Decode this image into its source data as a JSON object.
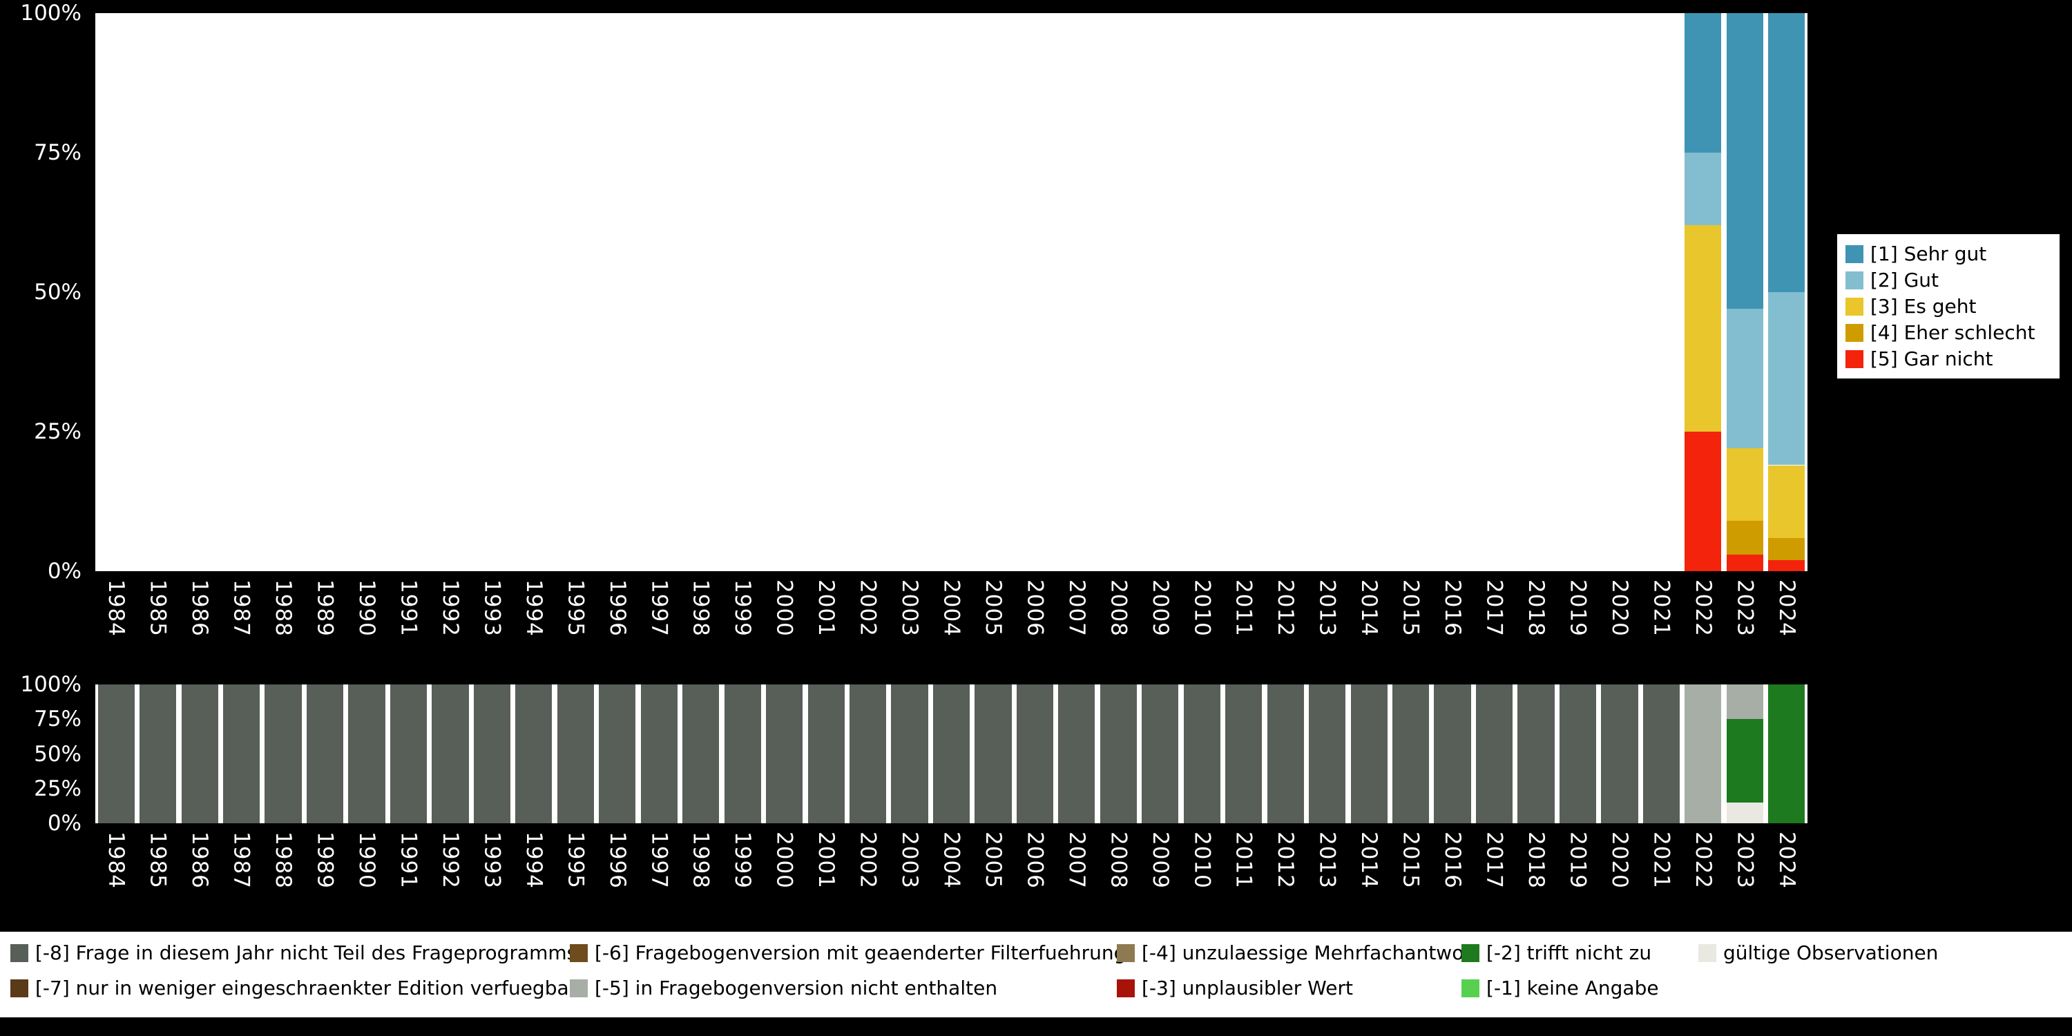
{
  "colors": {
    "page_background": "#000000",
    "plot_background": "#ffffff",
    "axis_text": "#ffffff",
    "legend_background": "#ffffff",
    "legend_text": "#000000"
  },
  "chart_data": [
    {
      "id": "answers",
      "type": "bar",
      "stacked": true,
      "series_order": "bottom-to-top",
      "ylim": [
        0,
        100
      ],
      "yticks_top_to_bottom": [
        "100%",
        "75%",
        "50%",
        "25%",
        "0%"
      ],
      "categories": [
        "1984",
        "1985",
        "1986",
        "1987",
        "1988",
        "1989",
        "1990",
        "1991",
        "1992",
        "1993",
        "1994",
        "1995",
        "1996",
        "1997",
        "1998",
        "1999",
        "2000",
        "2001",
        "2002",
        "2003",
        "2004",
        "2005",
        "2006",
        "2007",
        "2008",
        "2009",
        "2010",
        "2011",
        "2012",
        "2013",
        "2014",
        "2015",
        "2016",
        "2017",
        "2018",
        "2019",
        "2020",
        "2021",
        "2022",
        "2023",
        "2024"
      ],
      "series": [
        {
          "name": "[5] Gar nicht",
          "color": "#f3230c",
          "values": [
            0,
            0,
            0,
            0,
            0,
            0,
            0,
            0,
            0,
            0,
            0,
            0,
            0,
            0,
            0,
            0,
            0,
            0,
            0,
            0,
            0,
            0,
            0,
            0,
            0,
            0,
            0,
            0,
            0,
            0,
            0,
            0,
            0,
            0,
            0,
            0,
            0,
            0,
            25,
            3,
            2
          ]
        },
        {
          "name": "[4] Eher schlecht",
          "color": "#cf9c00",
          "values": [
            0,
            0,
            0,
            0,
            0,
            0,
            0,
            0,
            0,
            0,
            0,
            0,
            0,
            0,
            0,
            0,
            0,
            0,
            0,
            0,
            0,
            0,
            0,
            0,
            0,
            0,
            0,
            0,
            0,
            0,
            0,
            0,
            0,
            0,
            0,
            0,
            0,
            0,
            0,
            6,
            4
          ]
        },
        {
          "name": "[3] Es geht",
          "color": "#e8c62c",
          "values": [
            0,
            0,
            0,
            0,
            0,
            0,
            0,
            0,
            0,
            0,
            0,
            0,
            0,
            0,
            0,
            0,
            0,
            0,
            0,
            0,
            0,
            0,
            0,
            0,
            0,
            0,
            0,
            0,
            0,
            0,
            0,
            0,
            0,
            0,
            0,
            0,
            0,
            0,
            37,
            13,
            13
          ]
        },
        {
          "name": "[2] Gut",
          "color": "#83bdd0",
          "values": [
            0,
            0,
            0,
            0,
            0,
            0,
            0,
            0,
            0,
            0,
            0,
            0,
            0,
            0,
            0,
            0,
            0,
            0,
            0,
            0,
            0,
            0,
            0,
            0,
            0,
            0,
            0,
            0,
            0,
            0,
            0,
            0,
            0,
            0,
            0,
            0,
            0,
            0,
            13,
            25,
            31
          ]
        },
        {
          "name": "[1] Sehr gut",
          "color": "#3f94b3",
          "values": [
            0,
            0,
            0,
            0,
            0,
            0,
            0,
            0,
            0,
            0,
            0,
            0,
            0,
            0,
            0,
            0,
            0,
            0,
            0,
            0,
            0,
            0,
            0,
            0,
            0,
            0,
            0,
            0,
            0,
            0,
            0,
            0,
            0,
            0,
            0,
            0,
            0,
            0,
            25,
            53,
            50
          ]
        }
      ],
      "legend": {
        "position": "right",
        "items": [
          {
            "label": "[1] Sehr gut",
            "color": "#3f94b3"
          },
          {
            "label": "[2] Gut",
            "color": "#83bdd0"
          },
          {
            "label": "[3] Es geht",
            "color": "#e8c62c"
          },
          {
            "label": "[4] Eher schlecht",
            "color": "#cf9c00"
          },
          {
            "label": "[5] Gar nicht",
            "color": "#f3230c"
          }
        ]
      }
    },
    {
      "id": "missings",
      "type": "bar",
      "stacked": true,
      "series_order": "bottom-to-top",
      "ylim": [
        0,
        100
      ],
      "yticks_top_to_bottom": [
        "100%",
        "75%",
        "50%",
        "25%",
        "0%"
      ],
      "categories": [
        "1984",
        "1985",
        "1986",
        "1987",
        "1988",
        "1989",
        "1990",
        "1991",
        "1992",
        "1993",
        "1994",
        "1995",
        "1996",
        "1997",
        "1998",
        "1999",
        "2000",
        "2001",
        "2002",
        "2003",
        "2004",
        "2005",
        "2006",
        "2007",
        "2008",
        "2009",
        "2010",
        "2011",
        "2012",
        "2013",
        "2014",
        "2015",
        "2016",
        "2017",
        "2018",
        "2019",
        "2020",
        "2021",
        "2022",
        "2023",
        "2024"
      ],
      "series": [
        {
          "name": "gültige Observationen",
          "color": "#e9e9e2",
          "values": [
            0,
            0,
            0,
            0,
            0,
            0,
            0,
            0,
            0,
            0,
            0,
            0,
            0,
            0,
            0,
            0,
            0,
            0,
            0,
            0,
            0,
            0,
            0,
            0,
            0,
            0,
            0,
            0,
            0,
            0,
            0,
            0,
            0,
            0,
            0,
            0,
            0,
            0,
            0,
            15,
            0
          ]
        },
        {
          "name": "[-2] trifft nicht zu",
          "color": "#1e7a1e",
          "values": [
            0,
            0,
            0,
            0,
            0,
            0,
            0,
            0,
            0,
            0,
            0,
            0,
            0,
            0,
            0,
            0,
            0,
            0,
            0,
            0,
            0,
            0,
            0,
            0,
            0,
            0,
            0,
            0,
            0,
            0,
            0,
            0,
            0,
            0,
            0,
            0,
            0,
            0,
            0,
            60,
            100
          ]
        },
        {
          "name": "[-5] in Fragebogenversion nicht enthalten",
          "color": "#a6aea6",
          "values": [
            0,
            0,
            0,
            0,
            0,
            0,
            0,
            0,
            0,
            0,
            0,
            0,
            0,
            0,
            0,
            0,
            0,
            0,
            0,
            0,
            0,
            0,
            0,
            0,
            0,
            0,
            0,
            0,
            0,
            0,
            0,
            0,
            0,
            0,
            0,
            0,
            0,
            0,
            100,
            25,
            0
          ]
        },
        {
          "name": "[-8] Frage in diesem Jahr nicht Teil des Frageprogramms",
          "color": "#575f58",
          "values": [
            100,
            100,
            100,
            100,
            100,
            100,
            100,
            100,
            100,
            100,
            100,
            100,
            100,
            100,
            100,
            100,
            100,
            100,
            100,
            100,
            100,
            100,
            100,
            100,
            100,
            100,
            100,
            100,
            100,
            100,
            100,
            100,
            100,
            100,
            100,
            100,
            100,
            100,
            0,
            0,
            0
          ]
        }
      ]
    }
  ],
  "legend_bottom": {
    "columns": [
      {
        "items": [
          {
            "label": "[-8] Frage in diesem Jahr nicht Teil des Frageprogramms",
            "color": "#575f58"
          },
          {
            "label": "[-7] nur in weniger eingeschraenkter Edition verfuegbar",
            "color": "#5b3a18"
          }
        ]
      },
      {
        "items": [
          {
            "label": "[-6] Fragebogenversion mit geaenderter Filterfuehrung",
            "color": "#6e4c1e"
          },
          {
            "label": "[-5] in Fragebogenversion nicht enthalten",
            "color": "#a6aea6"
          }
        ]
      },
      {
        "items": [
          {
            "label": "[-4] unzulaessige Mehrfachantwort",
            "color": "#8d7a50"
          },
          {
            "label": "[-3] unplausibler Wert",
            "color": "#a81309"
          }
        ]
      },
      {
        "items": [
          {
            "label": "[-2] trifft nicht zu",
            "color": "#1e7a1e"
          },
          {
            "label": "[-1] keine Angabe",
            "color": "#57d04f"
          }
        ]
      },
      {
        "items": [
          {
            "label": "gültige Observationen",
            "color": "#e9e9e2"
          }
        ]
      }
    ]
  }
}
